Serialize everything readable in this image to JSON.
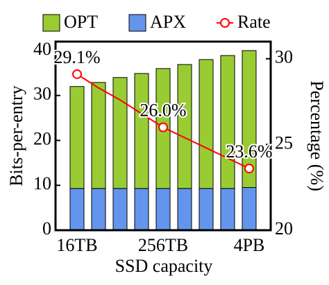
{
  "chart_data": {
    "type": "bar",
    "categories": [
      "16TB",
      null,
      null,
      null,
      "256TB",
      null,
      null,
      null,
      "4PB"
    ],
    "series": [
      {
        "name": "OPT",
        "color": "#99cc33",
        "values": [
          22.7,
          23.6,
          24.7,
          25.6,
          26.7,
          27.6,
          28.7,
          29.6,
          30.5
        ]
      },
      {
        "name": "APX",
        "color": "#6495ed",
        "values": [
          9.3,
          9.3,
          9.3,
          9.3,
          9.3,
          9.3,
          9.3,
          9.3,
          9.5
        ]
      },
      {
        "name": "Rate",
        "color": "#ff0000",
        "type": "line",
        "axis": "y2",
        "values": [
          29.1,
          28.3,
          27.6,
          26.8,
          26.0,
          25.4,
          24.8,
          24.2,
          23.6
        ],
        "value_labels": [
          "29.1%",
          null,
          null,
          null,
          "26.0%",
          null,
          null,
          null,
          "23.6%"
        ]
      }
    ],
    "xlabel": "SSD capacity",
    "ylabel": "Bits-per-entry",
    "y2label": "Percentage (%)",
    "ylim": [
      0,
      42
    ],
    "yticks": [
      0,
      10,
      20,
      30,
      40
    ],
    "y2lim": [
      20,
      31
    ],
    "y2ticks": [
      20,
      25,
      30
    ],
    "legend": "top"
  }
}
